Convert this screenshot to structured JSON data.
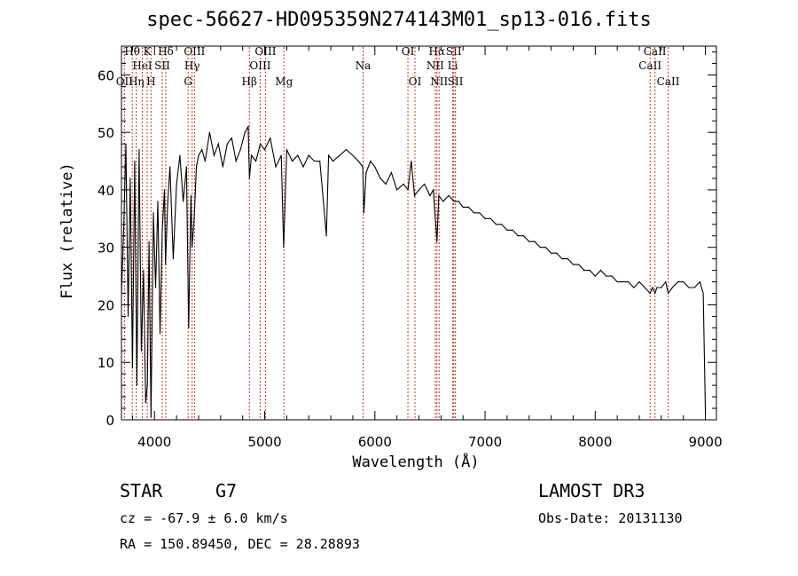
{
  "chart_data": {
    "type": "line",
    "title": "spec-56627-HD095359N274143M01_sp13-016.fits",
    "xlabel": "Wavelength (Å)",
    "ylabel": "Flux (relative)",
    "xlim": [
      3700,
      9100
    ],
    "ylim": [
      0,
      65
    ],
    "xticks": [
      4000,
      5000,
      6000,
      7000,
      8000,
      9000
    ],
    "yticks": [
      0,
      10,
      20,
      30,
      40,
      50,
      60
    ],
    "xtick_labels": [
      "4000",
      "5000",
      "6000",
      "7000",
      "8000",
      "9000"
    ],
    "ytick_labels": [
      "0",
      "10",
      "20",
      "30",
      "40",
      "50",
      "60"
    ],
    "series": [
      {
        "name": "spectrum",
        "x": [
          3700,
          3720,
          3740,
          3760,
          3780,
          3800,
          3820,
          3840,
          3860,
          3880,
          3900,
          3920,
          3935,
          3950,
          3968,
          3990,
          4010,
          4030,
          4050,
          4070,
          4090,
          4100,
          4120,
          4140,
          4170,
          4200,
          4230,
          4260,
          4290,
          4310,
          4330,
          4340,
          4360,
          4380,
          4400,
          4430,
          4460,
          4500,
          4540,
          4580,
          4620,
          4660,
          4700,
          4740,
          4780,
          4820,
          4850,
          4861,
          4880,
          4920,
          4960,
          5000,
          5050,
          5100,
          5150,
          5172,
          5200,
          5250,
          5300,
          5350,
          5400,
          5450,
          5500,
          5560,
          5580,
          5620,
          5680,
          5740,
          5800,
          5850,
          5890,
          5900,
          5920,
          5960,
          6000,
          6050,
          6100,
          6150,
          6200,
          6260,
          6300,
          6330,
          6360,
          6400,
          6450,
          6500,
          6530,
          6563,
          6580,
          6620,
          6670,
          6720,
          6760,
          6800,
          6850,
          6900,
          6950,
          7000,
          7050,
          7100,
          7150,
          7200,
          7250,
          7300,
          7350,
          7400,
          7450,
          7500,
          7550,
          7600,
          7650,
          7700,
          7750,
          7800,
          7850,
          7900,
          7950,
          8000,
          8050,
          8100,
          8150,
          8200,
          8250,
          8300,
          8350,
          8400,
          8450,
          8498,
          8520,
          8542,
          8560,
          8600,
          8640,
          8662,
          8700,
          8750,
          8800,
          8850,
          8900,
          8950,
          8980,
          9000
        ],
        "y": [
          22,
          33,
          48,
          18,
          42,
          9,
          45,
          6,
          47,
          12,
          26,
          3,
          6,
          31,
          0.5,
          36,
          23,
          38,
          15,
          33,
          40,
          27,
          38,
          44,
          28,
          41,
          46,
          38,
          44,
          16,
          39,
          30,
          35,
          44,
          46,
          47,
          45,
          50,
          46,
          48,
          44,
          48,
          49,
          45,
          47,
          50,
          51,
          42,
          46,
          45,
          48,
          47,
          49,
          44,
          46,
          30,
          47,
          45,
          46,
          44,
          46,
          45,
          45,
          32,
          46,
          45,
          46,
          47,
          46,
          45,
          44,
          36,
          43,
          45,
          44,
          42,
          41,
          43,
          40,
          41,
          40,
          45,
          39,
          40,
          41,
          39,
          40,
          31,
          39,
          38,
          39,
          38,
          38,
          37,
          37,
          36,
          36,
          35,
          35,
          34,
          34,
          33,
          33,
          32,
          32,
          31,
          31,
          30,
          30,
          29,
          29,
          28,
          28,
          27,
          27,
          26,
          26,
          25,
          26,
          25,
          25,
          24,
          24,
          24,
          23,
          24,
          23,
          22,
          23,
          22,
          23,
          23,
          24,
          22,
          23,
          24,
          24,
          23,
          23,
          24,
          22,
          1
        ]
      }
    ],
    "line_marks": [
      {
        "label": "Hθ",
        "x": 3798,
        "row": 1
      },
      {
        "label": "K",
        "x": 3934,
        "row": 1
      },
      {
        "label": "Hδ",
        "x": 4102,
        "row": 1
      },
      {
        "label": "OIII",
        "x": 4363,
        "row": 1
      },
      {
        "label": "OIII",
        "x": 5007,
        "row": 1
      },
      {
        "label": "OI",
        "x": 6300,
        "row": 1
      },
      {
        "label": "Hα",
        "x": 6563,
        "row": 1
      },
      {
        "label": "SII",
        "x": 6716,
        "row": 1
      },
      {
        "label": "CaII",
        "x": 8542,
        "row": 1
      },
      {
        "label": "HeI",
        "x": 3889,
        "row": 2
      },
      {
        "label": "SII",
        "x": 4070,
        "row": 2
      },
      {
        "label": "Hγ",
        "x": 4341,
        "row": 2
      },
      {
        "label": "OIII",
        "x": 4959,
        "row": 2
      },
      {
        "label": "Na",
        "x": 5893,
        "row": 2
      },
      {
        "label": "NII",
        "x": 6548,
        "row": 2
      },
      {
        "label": "Li",
        "x": 6707,
        "row": 2
      },
      {
        "label": "CaII",
        "x": 8498,
        "row": 2
      },
      {
        "label": "OII",
        "x": 3727,
        "row": 3
      },
      {
        "label": "Hη",
        "x": 3835,
        "row": 3
      },
      {
        "label": "H",
        "x": 3968,
        "row": 3
      },
      {
        "label": "G",
        "x": 4305,
        "row": 3
      },
      {
        "label": "Hβ",
        "x": 4861,
        "row": 3
      },
      {
        "label": "Mg",
        "x": 5175,
        "row": 3
      },
      {
        "label": "OI",
        "x": 6364,
        "row": 3
      },
      {
        "label": "NII",
        "x": 6583,
        "row": 3
      },
      {
        "label": "SII",
        "x": 6731,
        "row": 3
      },
      {
        "label": "CaII",
        "x": 8662,
        "row": 3
      }
    ]
  },
  "info": {
    "class_label": "STAR",
    "subclass": "G7",
    "survey": "LAMOST DR3",
    "cz": "cz = -67.9 ± 6.0 km/s",
    "obs_date": "Obs-Date: 20131130",
    "radec": "RA = 150.89450, DEC =  28.28893"
  },
  "colors": {
    "line_mark": "#c0392b",
    "spectrum": "#000000",
    "axis": "#000000"
  }
}
